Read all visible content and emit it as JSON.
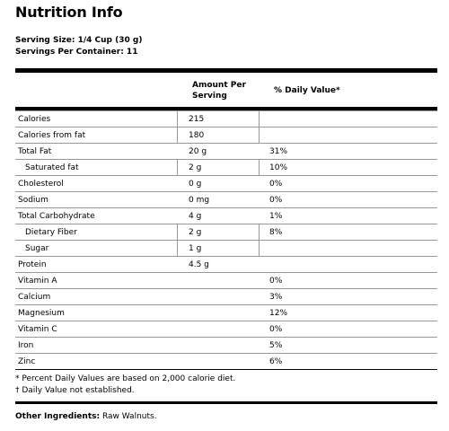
{
  "title": "Nutrition Info",
  "serving_size": "Serving Size: 1/4 Cup (30 g)",
  "servings_per_container": "Servings Per Container: 11",
  "table": {
    "header_amount_line1": "Amount Per",
    "header_amount_line2": "Serving",
    "header_dv": "% Daily Value*",
    "rows": [
      {
        "name": "Calories",
        "amount": "215",
        "dv": "",
        "indent": false,
        "amount_box": true
      },
      {
        "name": "Calories from fat",
        "amount": "180",
        "dv": "",
        "indent": false,
        "amount_box": true
      },
      {
        "name": "Total Fat",
        "amount": "20 g",
        "dv": "31%",
        "indent": false,
        "amount_box": false
      },
      {
        "name": "Saturated fat",
        "amount": "2 g",
        "dv": "10%",
        "indent": true,
        "amount_box": true
      },
      {
        "name": "Cholesterol",
        "amount": "0 g",
        "dv": "0%",
        "indent": false,
        "amount_box": false
      },
      {
        "name": "Sodium",
        "amount": "0 mg",
        "dv": "0%",
        "indent": false,
        "amount_box": false
      },
      {
        "name": "Total Carbohydrate",
        "amount": "4 g",
        "dv": "1%",
        "indent": false,
        "amount_box": false
      },
      {
        "name": "Dietary Fiber",
        "amount": "2 g",
        "dv": "8%",
        "indent": true,
        "amount_box": true
      },
      {
        "name": "Sugar",
        "amount": "1 g",
        "dv": "",
        "indent": true,
        "amount_box": true
      },
      {
        "name": "Protein",
        "amount": "4.5 g",
        "dv": "",
        "indent": false,
        "amount_box": false
      },
      {
        "name": "Vitamin A",
        "amount": "",
        "dv": "0%",
        "indent": false,
        "amount_box": false
      },
      {
        "name": "Calcium",
        "amount": "",
        "dv": "3%",
        "indent": false,
        "amount_box": false
      },
      {
        "name": "Magnesium",
        "amount": "",
        "dv": "12%",
        "indent": false,
        "amount_box": false
      },
      {
        "name": "Vitamin C",
        "amount": "",
        "dv": "0%",
        "indent": false,
        "amount_box": false
      },
      {
        "name": "Iron",
        "amount": "",
        "dv": "5%",
        "indent": false,
        "amount_box": false
      },
      {
        "name": "Zinc",
        "amount": "",
        "dv": "6%",
        "indent": false,
        "amount_box": false
      }
    ]
  },
  "footnotes": [
    "* Percent Daily Values are based on 2,000 calorie diet.",
    "† Daily Value not established."
  ],
  "other_ingredients_label": "Other Ingredients:",
  "other_ingredients_value": " Raw Walnuts."
}
